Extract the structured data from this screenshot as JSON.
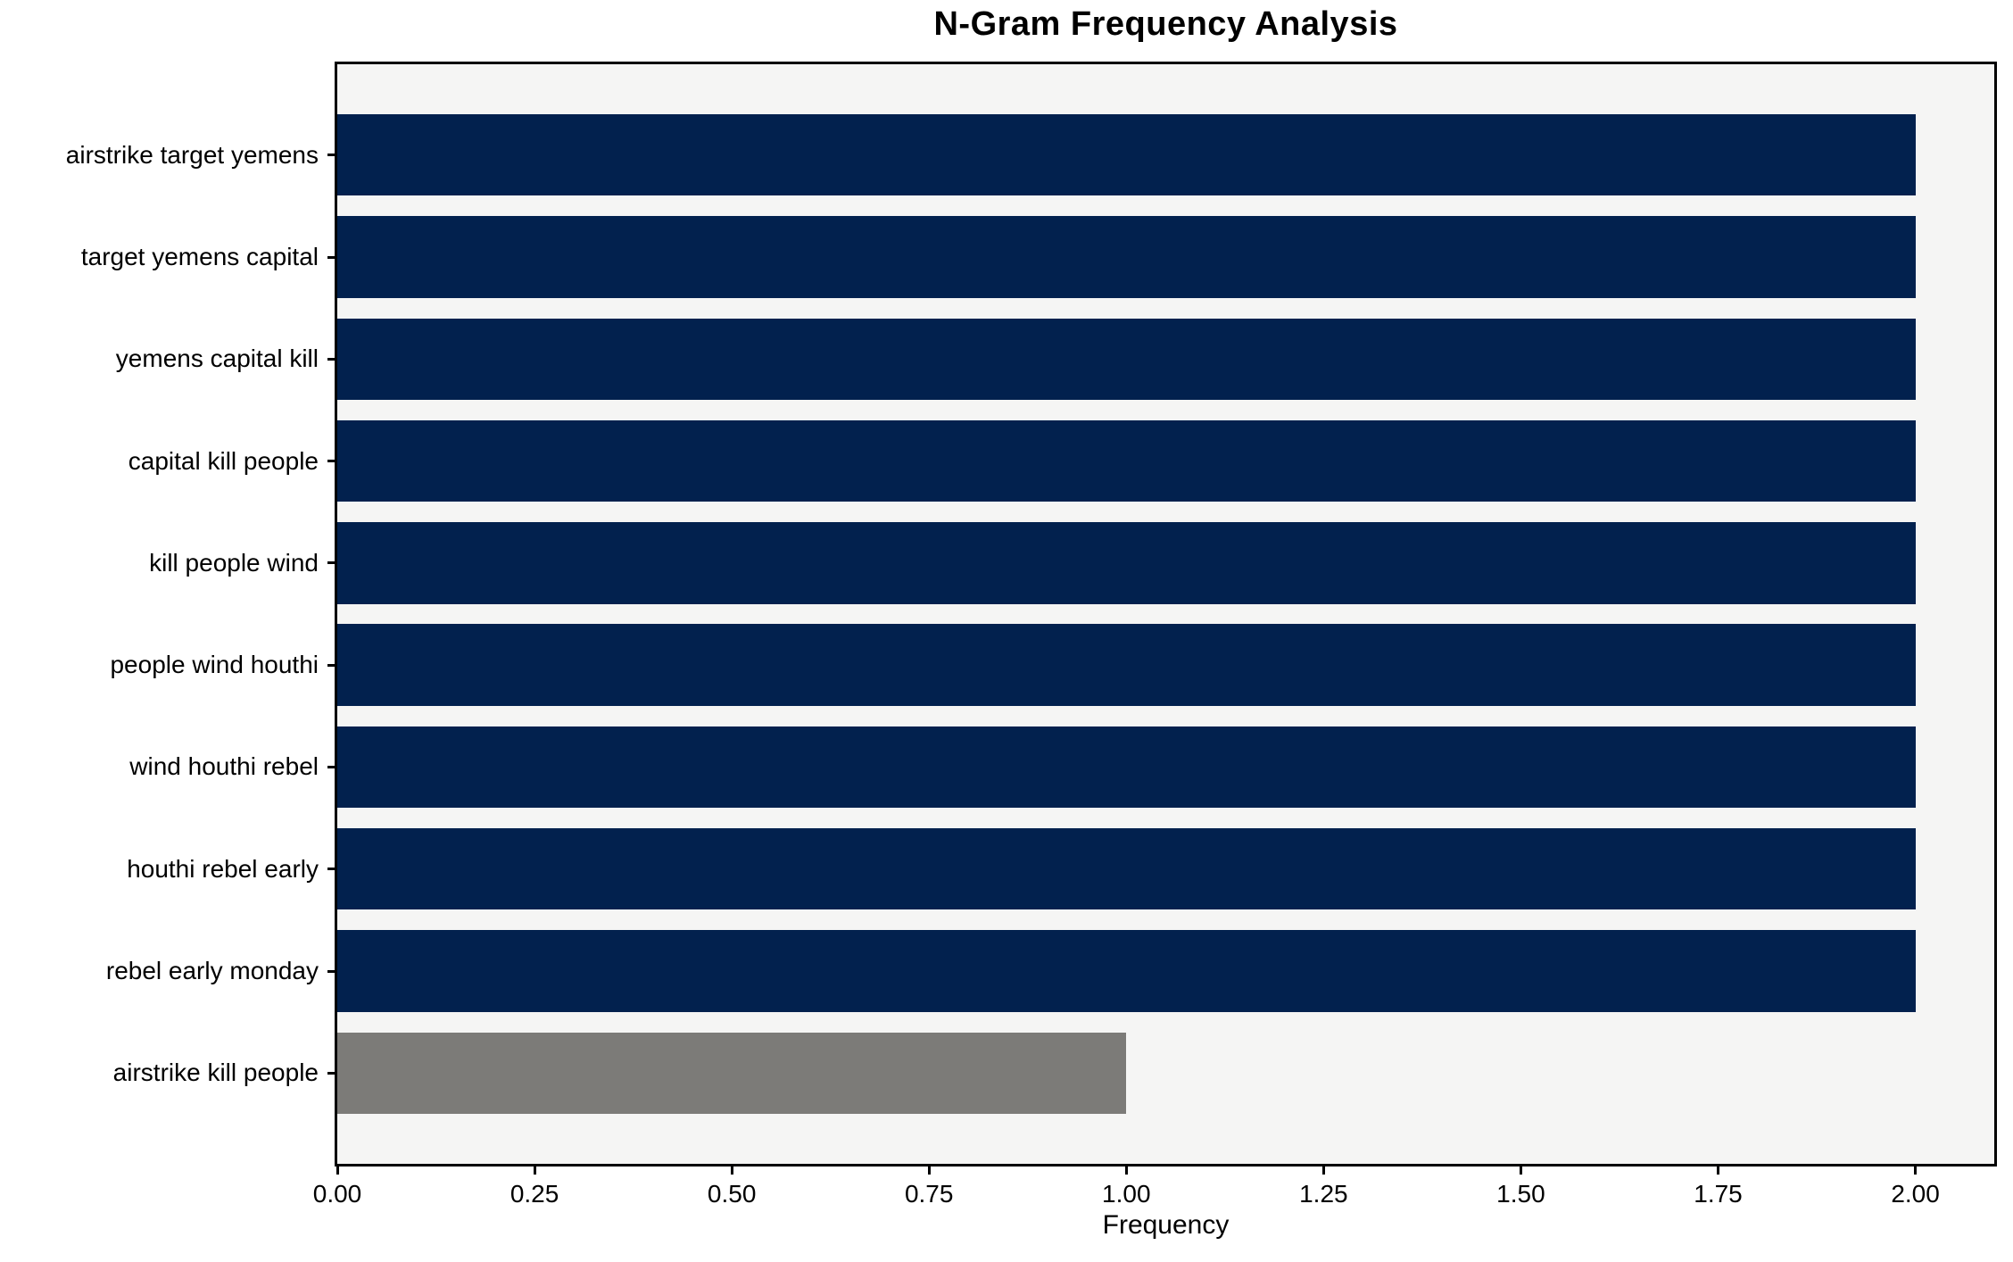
{
  "chart_data": {
    "type": "bar",
    "orientation": "horizontal",
    "title": "N-Gram Frequency Analysis",
    "xlabel": "Frequency",
    "ylabel": "",
    "categories": [
      "airstrike target yemens",
      "target yemens capital",
      "yemens capital kill",
      "capital kill people",
      "kill people wind",
      "people wind houthi",
      "wind houthi rebel",
      "houthi rebel early",
      "rebel early monday",
      "airstrike kill people"
    ],
    "values": [
      2,
      2,
      2,
      2,
      2,
      2,
      2,
      2,
      2,
      1
    ],
    "bar_colors": [
      "#02214e",
      "#02214e",
      "#02214e",
      "#02214e",
      "#02214e",
      "#02214e",
      "#02214e",
      "#02214e",
      "#02214e",
      "#7c7b78"
    ],
    "xlim": [
      0,
      2.1
    ],
    "xticks": [
      "0.00",
      "0.25",
      "0.50",
      "0.75",
      "1.00",
      "1.25",
      "1.50",
      "1.75",
      "2.00"
    ],
    "xtick_values": [
      0,
      0.25,
      0.5,
      0.75,
      1.0,
      1.25,
      1.5,
      1.75,
      2.0
    ],
    "grid": false,
    "legend": null,
    "colors": {
      "bar_primary": "#02214e",
      "bar_secondary": "#7c7b78",
      "plot_background": "#f5f5f4",
      "figure_background": "#ffffff",
      "axis": "#000000",
      "text": "#000000"
    }
  }
}
